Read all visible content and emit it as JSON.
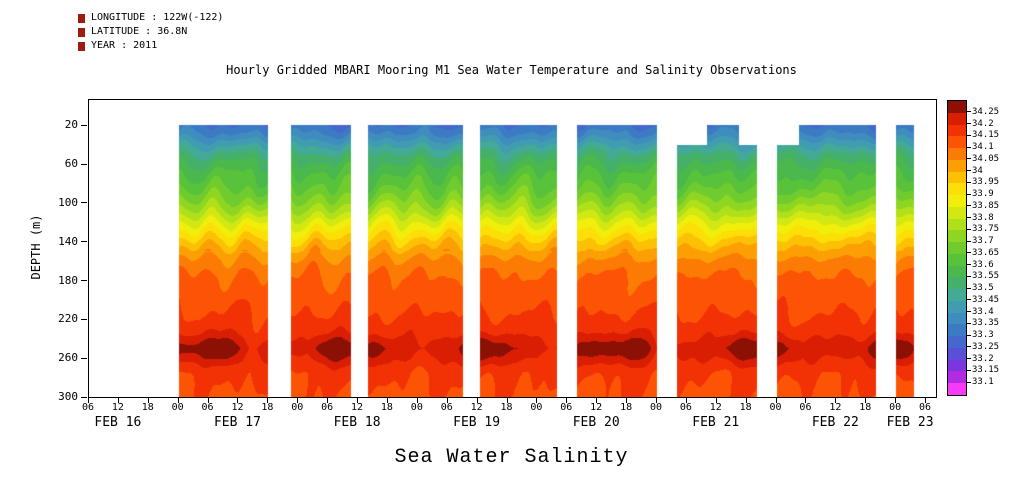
{
  "header": {
    "longitude": "LONGITUDE : 122W(-122)",
    "latitude": "LATITUDE : 36.8N",
    "year": "YEAR : 2011"
  },
  "title": "Hourly Gridded MBARI Mooring M1 Sea Water Temperature and Salinity Observations",
  "footer_label": "Sea Water Salinity",
  "chart_data": {
    "type": "heatmap",
    "variable": "Sea Water Salinity",
    "ylabel": "DEPTH (m)",
    "y_ticks": [
      20,
      60,
      100,
      140,
      180,
      220,
      260,
      300
    ],
    "y_domain": [
      -6,
      300
    ],
    "x_domain_hours": [
      6,
      176
    ],
    "x_tick_interval_hours": 6,
    "x_hour_tick_labels": [
      "00",
      "06",
      "12",
      "18"
    ],
    "day_labels": [
      {
        "label": "FEB 16",
        "center_hour": 12
      },
      {
        "label": "FEB 17",
        "center_hour": 36
      },
      {
        "label": "FEB 18",
        "center_hour": 60
      },
      {
        "label": "FEB 19",
        "center_hour": 84
      },
      {
        "label": "FEB 20",
        "center_hour": 108
      },
      {
        "label": "FEB 21",
        "center_hour": 132
      },
      {
        "label": "FEB 22",
        "center_hour": 156
      },
      {
        "label": "FEB 23",
        "center_hour": 171
      }
    ],
    "colorbar": {
      "levels_ascending": [
        33.1,
        33.15,
        33.2,
        33.25,
        33.3,
        33.35,
        33.4,
        33.45,
        33.5,
        33.55,
        33.6,
        33.65,
        33.7,
        33.75,
        33.8,
        33.85,
        33.9,
        33.95,
        34,
        34.05,
        34.1,
        34.15,
        34.2,
        34.25
      ],
      "labels_descending": [
        "34.25",
        "34.2",
        "34.15",
        "34.1",
        "34.05",
        "34",
        "33.95",
        "33.9",
        "33.85",
        "33.8",
        "33.75",
        "33.7",
        "33.65",
        "33.6",
        "33.55",
        "33.5",
        "33.45",
        "33.4",
        "33.35",
        "33.3",
        "33.25",
        "33.2",
        "33.15",
        "33.1"
      ],
      "colors_ascending": [
        "#f63bf6",
        "#b32be0",
        "#7d35e0",
        "#5a50d8",
        "#4468cc",
        "#3d7ac4",
        "#3f8cbe",
        "#419cb2",
        "#43aa96",
        "#45b06a",
        "#4ab84c",
        "#58c23a",
        "#70cc2e",
        "#8ed622",
        "#b0e01a",
        "#d2e812",
        "#f0ee0a",
        "#fcdf06",
        "#fcc105",
        "#fc9f04",
        "#fc7b04",
        "#fc5404",
        "#f23205",
        "#d91e04",
        "#8c1004"
      ]
    },
    "profile": {
      "depths": [
        20,
        30,
        40,
        50,
        60,
        70,
        80,
        90,
        100,
        110,
        120,
        130,
        140,
        150,
        160,
        170,
        180,
        200,
        220,
        235,
        250,
        262,
        275,
        300
      ],
      "salinity": [
        33.3,
        33.36,
        33.44,
        33.51,
        33.56,
        33.6,
        33.63,
        33.67,
        33.72,
        33.78,
        33.85,
        33.91,
        33.97,
        34.02,
        34.06,
        34.09,
        34.11,
        34.13,
        34.16,
        34.18,
        34.22,
        34.19,
        34.16,
        34.14
      ]
    },
    "data_segments": [
      {
        "start_hour": 24,
        "end_hour": 42,
        "top_depth": 20
      },
      {
        "start_hour": 46.5,
        "end_hour": 58.5,
        "top_depth": 20
      },
      {
        "start_hour": 62,
        "end_hour": 81,
        "top_depth": 20
      },
      {
        "start_hour": 84.5,
        "end_hour": 100,
        "top_depth": 20
      },
      {
        "start_hour": 104,
        "end_hour": 120,
        "top_depth": 20
      },
      {
        "start_hour": 124,
        "end_hour": 130,
        "top_depth": 40
      },
      {
        "start_hour": 130,
        "end_hour": 136.5,
        "top_depth": 20
      },
      {
        "start_hour": 136.5,
        "end_hour": 140,
        "top_depth": 40
      },
      {
        "start_hour": 144,
        "end_hour": 148.5,
        "top_depth": 40
      },
      {
        "start_hour": 148.5,
        "end_hour": 164,
        "top_depth": 20
      },
      {
        "start_hour": 168,
        "end_hour": 171.5,
        "top_depth": 20
      }
    ]
  }
}
